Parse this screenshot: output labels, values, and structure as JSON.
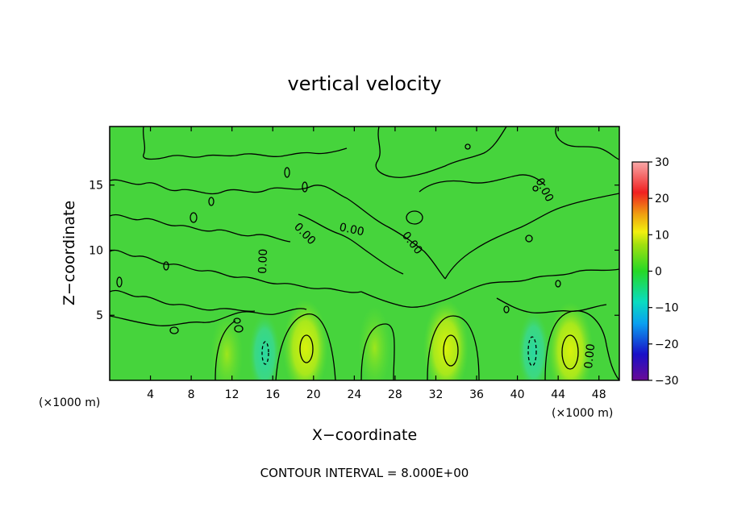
{
  "chart_data": {
    "type": "heatmap",
    "title": "vertical velocity",
    "xlabel": "X−coordinate",
    "ylabel": "Z−coordinate",
    "x_unit": "(×1000 m)",
    "y_unit": "(×1000 m)",
    "xlim": [
      0,
      50
    ],
    "ylim": [
      0,
      19.5
    ],
    "x_ticks": [
      4,
      8,
      12,
      16,
      20,
      24,
      28,
      32,
      36,
      40,
      44,
      48
    ],
    "x_tick_labels": [
      "4",
      "8",
      "12",
      "16",
      "20",
      "24",
      "28",
      "32",
      "36",
      "40",
      "44",
      "48"
    ],
    "y_ticks": [
      5,
      10,
      15
    ],
    "y_tick_labels": [
      "5",
      "10",
      "15"
    ],
    "colorbar": {
      "range": [
        -30,
        30
      ],
      "ticks": [
        -30,
        -20,
        -10,
        0,
        10,
        20,
        30
      ],
      "tick_labels": [
        "−30",
        "−20",
        "−10",
        "0",
        "10",
        "20",
        "30"
      ]
    },
    "contour_interval": 8.0,
    "contour_labels": [
      "0.00",
      "0.00",
      "0.00",
      "0.00",
      "0.00",
      "0.00"
    ],
    "footer": "CONTOUR INTERVAL = 8.000E+00",
    "features": [
      {
        "kind": "updraft",
        "x": 19.2,
        "z": 2.5,
        "value": 8
      },
      {
        "kind": "updraft",
        "x": 33.0,
        "z": 2.5,
        "value": 8
      },
      {
        "kind": "updraft",
        "x": 45.2,
        "z": 2.3,
        "value": 9
      },
      {
        "kind": "updraft",
        "x": 11.5,
        "z": 2.0,
        "value": 4
      },
      {
        "kind": "updraft",
        "x": 26.0,
        "z": 2.5,
        "value": 4
      },
      {
        "kind": "downdraft",
        "x": 15.2,
        "z": 2.0,
        "value": -4
      },
      {
        "kind": "downdraft",
        "x": 41.6,
        "z": 2.2,
        "value": -4
      }
    ]
  }
}
